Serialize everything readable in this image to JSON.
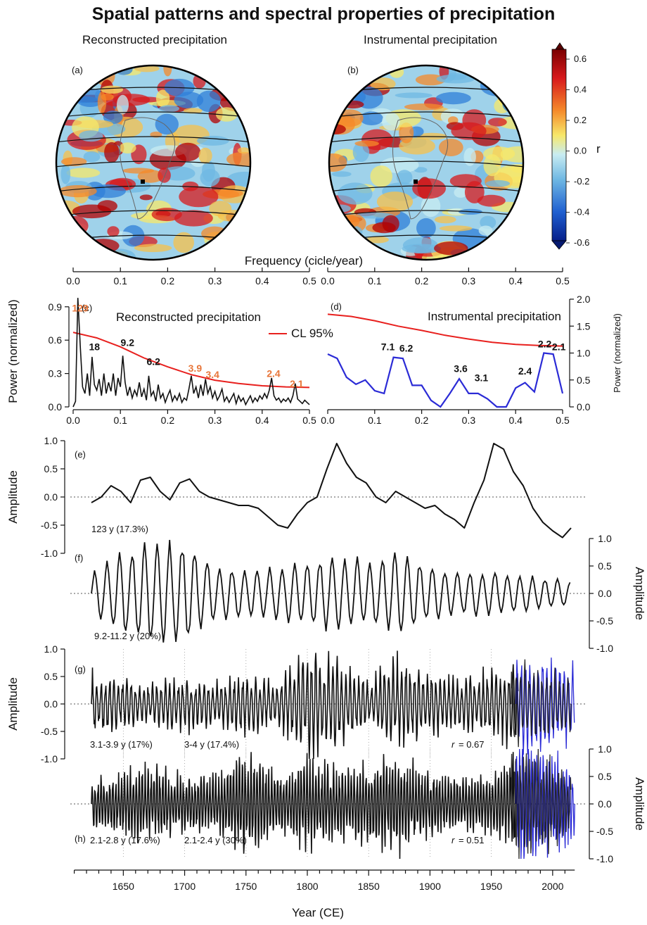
{
  "title": "Spatial patterns and spectral properties of precipitation",
  "maps": {
    "a": {
      "tag": "(a)",
      "title": "Reconstructed precipitation"
    },
    "b": {
      "tag": "(b)",
      "title": "Instrumental precipitation"
    },
    "colorbar": {
      "label": "r",
      "ticks": [
        "0.6",
        "0.4",
        "0.2",
        "0.0",
        "-0.2",
        "-0.4",
        "-0.6"
      ]
    }
  },
  "top_axis_label": "Frequency (cicle/year)",
  "colors": {
    "black": "#111111",
    "red": "#e8201e",
    "blue": "#2b2bd6",
    "orange": "#e8763a"
  },
  "chart_data": [
    {
      "id": "c",
      "type": "line",
      "tag": "(c)",
      "title": "Reconstructed precipitation",
      "ylabel": "Power (normalized)",
      "xlim": [
        0,
        0.5
      ],
      "ylim": [
        0,
        1.0
      ],
      "xticks": [
        "0.0",
        "0.1",
        "0.2",
        "0.3",
        "0.4",
        "0.5"
      ],
      "yticks": [
        "0.0",
        "0.3",
        "0.6",
        "0.9"
      ],
      "legend": "CL 95%",
      "spectrum_x": [
        0,
        0.005,
        0.01,
        0.015,
        0.02,
        0.025,
        0.03,
        0.035,
        0.04,
        0.045,
        0.05,
        0.055,
        0.06,
        0.065,
        0.07,
        0.075,
        0.08,
        0.085,
        0.09,
        0.095,
        0.1,
        0.105,
        0.11,
        0.115,
        0.12,
        0.125,
        0.13,
        0.135,
        0.14,
        0.145,
        0.15,
        0.155,
        0.16,
        0.165,
        0.17,
        0.175,
        0.18,
        0.185,
        0.19,
        0.195,
        0.2,
        0.205,
        0.21,
        0.215,
        0.22,
        0.225,
        0.23,
        0.235,
        0.24,
        0.245,
        0.25,
        0.255,
        0.26,
        0.265,
        0.27,
        0.275,
        0.28,
        0.285,
        0.29,
        0.295,
        0.3,
        0.305,
        0.31,
        0.315,
        0.32,
        0.325,
        0.33,
        0.335,
        0.34,
        0.345,
        0.35,
        0.355,
        0.36,
        0.365,
        0.37,
        0.375,
        0.38,
        0.385,
        0.39,
        0.395,
        0.4,
        0.405,
        0.41,
        0.415,
        0.42,
        0.425,
        0.43,
        0.435,
        0.44,
        0.445,
        0.45,
        0.455,
        0.46,
        0.465,
        0.47,
        0.475,
        0.48,
        0.485,
        0.49,
        0.495,
        0.5
      ],
      "spectrum_y": [
        0.0,
        0.05,
        0.98,
        0.55,
        0.18,
        0.12,
        0.3,
        0.1,
        0.45,
        0.2,
        0.15,
        0.25,
        0.1,
        0.3,
        0.12,
        0.22,
        0.14,
        0.3,
        0.1,
        0.26,
        0.18,
        0.46,
        0.22,
        0.1,
        0.18,
        0.08,
        0.15,
        0.1,
        0.22,
        0.09,
        0.16,
        0.06,
        0.28,
        0.1,
        0.14,
        0.05,
        0.2,
        0.08,
        0.12,
        0.04,
        0.1,
        0.15,
        0.05,
        0.1,
        0.06,
        0.12,
        0.04,
        0.08,
        0.06,
        0.16,
        0.28,
        0.12,
        0.18,
        0.08,
        0.2,
        0.1,
        0.25,
        0.12,
        0.18,
        0.08,
        0.14,
        0.06,
        0.1,
        0.16,
        0.05,
        0.09,
        0.04,
        0.08,
        0.12,
        0.03,
        0.1,
        0.05,
        0.08,
        0.02,
        0.06,
        0.1,
        0.04,
        0.08,
        0.05,
        0.1,
        0.07,
        0.12,
        0.08,
        0.15,
        0.26,
        0.1,
        0.06,
        0.08,
        0.04,
        0.07,
        0.05,
        0.08,
        0.04,
        0.1,
        0.21,
        0.07,
        0.05,
        0.03,
        0.06,
        0.04,
        0.02
      ],
      "cl_x": [
        0,
        0.05,
        0.1,
        0.15,
        0.2,
        0.25,
        0.3,
        0.35,
        0.4,
        0.45,
        0.5
      ],
      "cl_y": [
        0.67,
        0.62,
        0.54,
        0.44,
        0.36,
        0.29,
        0.24,
        0.21,
        0.19,
        0.18,
        0.175
      ],
      "peaks": [
        {
          "label": "129",
          "x": 0.015,
          "y": 0.82,
          "color": "orange"
        },
        {
          "label": "18",
          "x": 0.045,
          "y": 0.47,
          "color": "black"
        },
        {
          "label": "9.2",
          "x": 0.115,
          "y": 0.51,
          "color": "black"
        },
        {
          "label": "6.2",
          "x": 0.17,
          "y": 0.34,
          "color": "black"
        },
        {
          "label": "3.9",
          "x": 0.258,
          "y": 0.28,
          "color": "orange"
        },
        {
          "label": "3.4",
          "x": 0.295,
          "y": 0.22,
          "color": "orange"
        },
        {
          "label": "2.4",
          "x": 0.424,
          "y": 0.23,
          "color": "orange"
        },
        {
          "label": "2.1",
          "x": 0.473,
          "y": 0.14,
          "color": "orange"
        }
      ]
    },
    {
      "id": "d",
      "type": "line",
      "tag": "(d)",
      "title": "Instrumental precipitation",
      "ylabel": "Power (normalized)",
      "xlim": [
        0,
        0.5
      ],
      "ylim": [
        0,
        2.0
      ],
      "xticks": [
        "0.0",
        "0.1",
        "0.2",
        "0.3",
        "0.4",
        "0.5"
      ],
      "yticks": [
        "0.0",
        "0.5",
        "1.0",
        "1.5",
        "2.0"
      ],
      "spectrum_x": [
        0,
        0.02,
        0.04,
        0.06,
        0.08,
        0.1,
        0.12,
        0.14,
        0.16,
        0.18,
        0.2,
        0.22,
        0.24,
        0.26,
        0.28,
        0.3,
        0.32,
        0.34,
        0.36,
        0.38,
        0.4,
        0.42,
        0.44,
        0.46,
        0.48,
        0.5
      ],
      "spectrum_y": [
        0.98,
        0.9,
        0.55,
        0.42,
        0.5,
        0.3,
        0.25,
        0.92,
        0.9,
        0.4,
        0.4,
        0.12,
        0.0,
        0.25,
        0.52,
        0.25,
        0.25,
        0.15,
        0.0,
        0.0,
        0.35,
        0.45,
        0.28,
        1.0,
        0.98,
        0.25
      ],
      "cl_x": [
        0,
        0.05,
        0.1,
        0.15,
        0.2,
        0.25,
        0.3,
        0.35,
        0.4,
        0.45,
        0.5
      ],
      "cl_y": [
        1.72,
        1.68,
        1.6,
        1.5,
        1.42,
        1.33,
        1.26,
        1.2,
        1.16,
        1.14,
        1.13
      ],
      "peaks": [
        {
          "label": "7.1",
          "x": 0.128,
          "y": 0.95
        },
        {
          "label": "6.2",
          "x": 0.167,
          "y": 0.92
        },
        {
          "label": "3.6",
          "x": 0.283,
          "y": 0.54
        },
        {
          "label": "3.1",
          "x": 0.327,
          "y": 0.37
        },
        {
          "label": "2.4",
          "x": 0.42,
          "y": 0.5
        },
        {
          "label": "2.2",
          "x": 0.462,
          "y": 1.0
        },
        {
          "label": "2.1",
          "x": 0.492,
          "y": 0.95
        }
      ]
    },
    {
      "id": "e",
      "type": "line",
      "tag": "(e)",
      "ylabel": "Amplitude",
      "ylim": [
        -1.0,
        1.0
      ],
      "yticks": [
        "-1.0",
        "-0.5",
        "0.0",
        "0.5",
        "1.0"
      ],
      "note": "123 y (17.3%)",
      "x": [
        1624,
        1632,
        1640,
        1648,
        1656,
        1664,
        1672,
        1680,
        1688,
        1696,
        1704,
        1712,
        1720,
        1728,
        1736,
        1744,
        1752,
        1760,
        1768,
        1776,
        1784,
        1792,
        1800,
        1808,
        1816,
        1824,
        1832,
        1840,
        1848,
        1856,
        1864,
        1872,
        1880,
        1888,
        1896,
        1904,
        1912,
        1920,
        1928,
        1936,
        1944,
        1952,
        1960,
        1968,
        1976,
        1984,
        1992,
        2000,
        2008,
        2015
      ],
      "y": [
        -0.1,
        0.0,
        0.2,
        0.1,
        -0.1,
        0.3,
        0.35,
        0.1,
        -0.05,
        0.25,
        0.32,
        0.1,
        0.0,
        -0.05,
        -0.1,
        -0.15,
        -0.15,
        -0.2,
        -0.35,
        -0.5,
        -0.55,
        -0.3,
        -0.1,
        0.0,
        0.5,
        0.95,
        0.6,
        0.35,
        0.25,
        0.0,
        -0.1,
        0.1,
        0.0,
        -0.1,
        -0.2,
        -0.15,
        -0.3,
        -0.4,
        -0.55,
        -0.1,
        0.3,
        0.95,
        0.85,
        0.45,
        0.2,
        -0.2,
        -0.45,
        -0.6,
        -0.72,
        -0.55
      ]
    },
    {
      "id": "f",
      "type": "line",
      "tag": "(f)",
      "ylabel": "Amplitude",
      "ylim": [
        -1.0,
        1.0
      ],
      "yticks": [
        "-1.0",
        "-0.5",
        "0.0",
        "0.5",
        "1.0"
      ],
      "note": "9.2-11.2 y (20%)",
      "x_range": [
        1624,
        2015
      ],
      "period_years": 10.2,
      "envelope_x": [
        1624,
        1650,
        1675,
        1700,
        1725,
        1750,
        1775,
        1800,
        1825,
        1850,
        1875,
        1900,
        1925,
        1950,
        1975,
        2000,
        2015
      ],
      "envelope_y": [
        0.35,
        0.7,
        0.9,
        0.85,
        0.45,
        0.4,
        0.45,
        0.55,
        0.65,
        0.55,
        0.7,
        0.45,
        0.35,
        0.4,
        0.3,
        0.25,
        0.2
      ]
    },
    {
      "id": "g",
      "type": "line",
      "tag": "(g)",
      "ylabel": "Amplitude",
      "ylim": [
        -1.0,
        1.0
      ],
      "yticks": [
        "-1.0",
        "-0.5",
        "0.0",
        "0.5",
        "1.0"
      ],
      "note_black": "3.1-3.9 y  (17%)",
      "note_blue": "3-4 y (17.4%)",
      "r_label": "r",
      "r_value": "= 0.67",
      "x_range": [
        1624,
        2015
      ],
      "period_years": 3.5,
      "envelope_x": [
        1624,
        1650,
        1675,
        1700,
        1725,
        1750,
        1775,
        1800,
        1825,
        1850,
        1875,
        1900,
        1925,
        1950,
        1975,
        2000,
        2015
      ],
      "envelope_y": [
        0.45,
        0.35,
        0.3,
        0.4,
        0.3,
        0.45,
        0.3,
        0.75,
        0.6,
        0.35,
        0.7,
        0.45,
        0.35,
        0.5,
        0.6,
        0.5,
        0.45
      ],
      "instrumental_range": [
        1970,
        2018
      ],
      "vlines": [
        1650,
        1700,
        1750,
        1800,
        1850,
        1900,
        1950
      ]
    },
    {
      "id": "h",
      "type": "line",
      "tag": "(h)",
      "ylabel": "Amplitude",
      "ylim": [
        -1.0,
        1.0
      ],
      "yticks": [
        "-1.0",
        "-0.5",
        "0.0",
        "0.5",
        "1.0"
      ],
      "note_black": "2.1-2.8 y (17.6%)",
      "note_blue": "2.1-2.4 y (30%)",
      "r_label": "r",
      "r_value": "= 0.51",
      "x_range": [
        1624,
        2015
      ],
      "period_years": 2.4,
      "envelope_x": [
        1624,
        1650,
        1675,
        1700,
        1725,
        1750,
        1775,
        1800,
        1825,
        1850,
        1875,
        1900,
        1925,
        1950,
        1975,
        2000,
        2015
      ],
      "envelope_y": [
        0.35,
        0.45,
        0.55,
        0.4,
        0.4,
        0.75,
        0.4,
        0.65,
        0.5,
        0.55,
        0.7,
        0.45,
        0.35,
        0.4,
        0.8,
        0.6,
        0.4
      ],
      "instrumental_range": [
        1970,
        2018
      ],
      "vlines": [
        1650,
        1700,
        1750,
        1800,
        1850,
        1900,
        1950
      ],
      "xlabel": "Year (CE)",
      "xticks": [
        1650,
        1700,
        1750,
        1800,
        1850,
        1900,
        1950,
        2000
      ],
      "xlim": [
        1610,
        2020
      ]
    }
  ]
}
